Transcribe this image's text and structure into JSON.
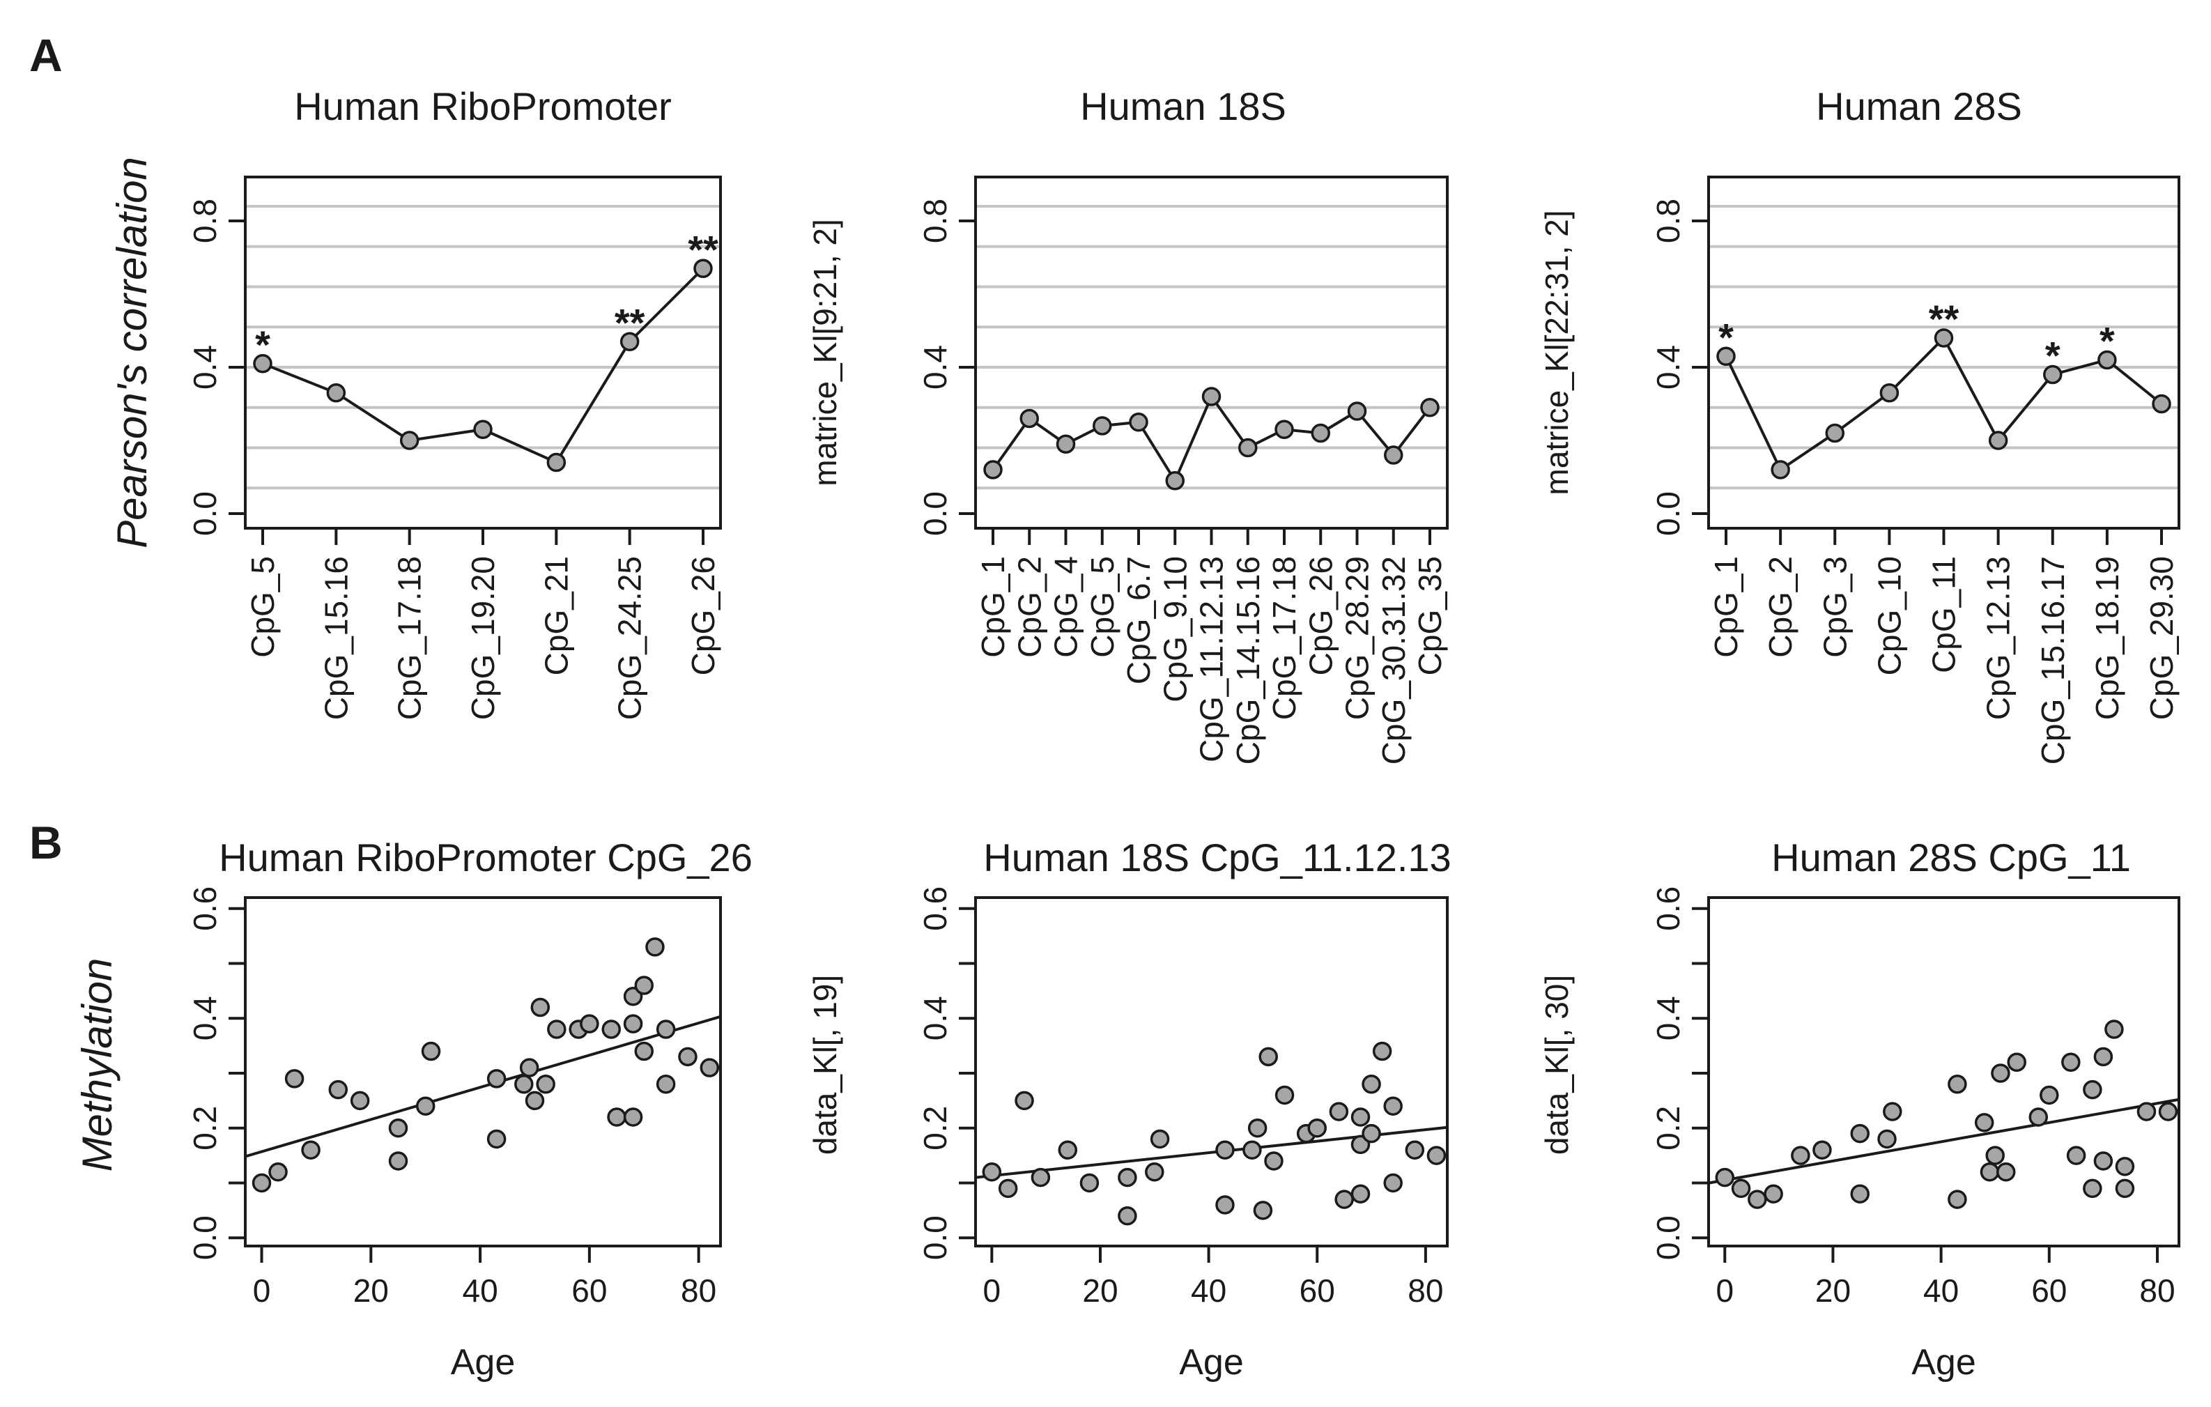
{
  "panel_labels": {
    "a": "A",
    "b": "B"
  },
  "colors": {
    "grid": "#c4c4c4",
    "point_fill": "#a6a6a6",
    "ink": "#1a1a1a"
  },
  "chart_data": [
    {
      "type": "line",
      "title": "Human RiboPromoter",
      "xlabel": "",
      "ylabel": "Pearson's correlation",
      "ylabel_italic": true,
      "categories": [
        "CpG_5",
        "CpG_15.16",
        "CpG_17.18",
        "CpG_19.20",
        "CpG_21",
        "CpG_24.25",
        "CpG_26"
      ],
      "values": [
        0.41,
        0.33,
        0.2,
        0.23,
        0.14,
        0.47,
        0.67
      ],
      "annotations": [
        "*",
        "",
        "",
        "",
        "",
        "**",
        "**"
      ],
      "ylim": [
        -0.04,
        0.92
      ],
      "yticks": [
        "0.0",
        "0.4",
        "0.8"
      ],
      "ytick_values": [
        0.0,
        0.4,
        0.8
      ],
      "grid_y": [
        0.07,
        0.18,
        0.29,
        0.4,
        0.51,
        0.62,
        0.73,
        0.84
      ]
    },
    {
      "type": "line",
      "title": "Human 18S",
      "xlabel": "",
      "ylabel": "matrice_Kl[9:21, 2]",
      "ylabel_italic": false,
      "categories": [
        "CpG_1",
        "CpG_2",
        "CpG_4",
        "CpG_5",
        "CpG_6.7",
        "CpG_9.10",
        "CpG_11.12.13",
        "CpG_14.15.16",
        "CpG_17.18",
        "CpG_26",
        "CpG_28.29",
        "CpG_30.31.32",
        "CpG_35"
      ],
      "values": [
        0.12,
        0.26,
        0.19,
        0.24,
        0.25,
        0.09,
        0.32,
        0.18,
        0.23,
        0.22,
        0.28,
        0.16,
        0.29
      ],
      "annotations": [
        "",
        "",
        "",
        "",
        "",
        "",
        "",
        "",
        "",
        "",
        "",
        "",
        ""
      ],
      "ylim": [
        -0.04,
        0.92
      ],
      "yticks": [
        "0.0",
        "0.4",
        "0.8"
      ],
      "ytick_values": [
        0.0,
        0.4,
        0.8
      ],
      "grid_y": [
        0.07,
        0.18,
        0.29,
        0.4,
        0.51,
        0.62,
        0.73,
        0.84
      ]
    },
    {
      "type": "line",
      "title": "Human 28S",
      "xlabel": "",
      "ylabel": "matrice_Kl[22:31, 2]",
      "ylabel_italic": false,
      "categories": [
        "CpG_1",
        "CpG_2",
        "CpG_3",
        "CpG_10",
        "CpG_11",
        "CpG_12.13",
        "CpG_15.16.17",
        "CpG_18.19",
        "CpG_29.30"
      ],
      "values": [
        0.43,
        0.12,
        0.22,
        0.33,
        0.48,
        0.2,
        0.38,
        0.42,
        0.3
      ],
      "annotations": [
        "*",
        "",
        "",
        "",
        "**",
        "",
        "*",
        "*",
        ""
      ],
      "ylim": [
        -0.04,
        0.92
      ],
      "yticks": [
        "0.0",
        "0.4",
        "0.8"
      ],
      "ytick_values": [
        0.0,
        0.4,
        0.8
      ],
      "grid_y": [
        0.07,
        0.18,
        0.29,
        0.4,
        0.51,
        0.62,
        0.73,
        0.84
      ]
    },
    {
      "type": "scatter",
      "title": "Human RiboPromoter CpG_26",
      "xlabel": "Age",
      "ylabel": "Methylation",
      "ylabel_italic": true,
      "x": [
        0,
        3,
        6,
        9,
        14,
        18,
        25,
        25,
        30,
        31,
        43,
        43,
        48,
        49,
        50,
        51,
        52,
        54,
        58,
        60,
        64,
        65,
        68,
        68,
        68,
        70,
        70,
        72,
        74,
        74,
        78,
        82
      ],
      "y": [
        0.1,
        0.12,
        0.29,
        0.16,
        0.27,
        0.25,
        0.14,
        0.2,
        0.24,
        0.34,
        0.18,
        0.29,
        0.28,
        0.31,
        0.25,
        0.42,
        0.28,
        0.38,
        0.38,
        0.39,
        0.38,
        0.22,
        0.22,
        0.39,
        0.44,
        0.34,
        0.46,
        0.53,
        0.28,
        0.38,
        0.33,
        0.31
      ],
      "fit_line": {
        "intercept": 0.157,
        "slope": 0.00293
      },
      "xlim": [
        -3,
        84
      ],
      "ylim": [
        -0.015,
        0.62
      ],
      "xticks": [
        "0",
        "20",
        "40",
        "60",
        "80"
      ],
      "xtick_values": [
        0,
        20,
        40,
        60,
        80
      ],
      "yticks": [
        "0.0",
        "0.2",
        "0.4",
        "0.6"
      ],
      "ytick_values": [
        0.0,
        0.2,
        0.4,
        0.6
      ]
    },
    {
      "type": "scatter",
      "title": "Human 18S CpG_11.12.13",
      "xlabel": "Age",
      "ylabel": "data_Kl[, 19]",
      "ylabel_italic": false,
      "x": [
        0,
        3,
        6,
        9,
        14,
        18,
        25,
        25,
        30,
        31,
        43,
        43,
        48,
        49,
        50,
        51,
        52,
        54,
        58,
        60,
        64,
        65,
        68,
        68,
        68,
        70,
        70,
        72,
        74,
        74,
        78,
        82
      ],
      "y": [
        0.12,
        0.09,
        0.25,
        0.11,
        0.16,
        0.1,
        0.04,
        0.11,
        0.12,
        0.18,
        0.06,
        0.16,
        0.16,
        0.2,
        0.05,
        0.33,
        0.14,
        0.26,
        0.19,
        0.2,
        0.23,
        0.07,
        0.08,
        0.17,
        0.22,
        0.19,
        0.28,
        0.34,
        0.1,
        0.24,
        0.16,
        0.15
      ],
      "fit_line": {
        "intercept": 0.113,
        "slope": 0.00105
      },
      "xlim": [
        -3,
        84
      ],
      "ylim": [
        -0.015,
        0.62
      ],
      "xticks": [
        "0",
        "20",
        "40",
        "60",
        "80"
      ],
      "xtick_values": [
        0,
        20,
        40,
        60,
        80
      ],
      "yticks": [
        "0.0",
        "0.2",
        "0.4",
        "0.6"
      ],
      "ytick_values": [
        0.0,
        0.2,
        0.4,
        0.6
      ]
    },
    {
      "type": "scatter",
      "title": "Human 28S CpG_11",
      "xlabel": "Age",
      "ylabel": "data_Kl[, 30]",
      "ylabel_italic": false,
      "x": [
        0,
        3,
        6,
        9,
        14,
        18,
        25,
        25,
        30,
        31,
        43,
        43,
        48,
        49,
        50,
        51,
        52,
        54,
        58,
        60,
        64,
        65,
        68,
        68,
        70,
        70,
        72,
        74,
        74,
        78,
        82
      ],
      "y": [
        0.11,
        0.09,
        0.07,
        0.08,
        0.15,
        0.16,
        0.08,
        0.19,
        0.18,
        0.23,
        0.07,
        0.28,
        0.21,
        0.12,
        0.15,
        0.3,
        0.12,
        0.32,
        0.22,
        0.26,
        0.32,
        0.15,
        0.09,
        0.27,
        0.14,
        0.33,
        0.38,
        0.13,
        0.09,
        0.23,
        0.23
      ],
      "fit_line": {
        "intercept": 0.105,
        "slope": 0.00175
      },
      "xlim": [
        -3,
        84
      ],
      "ylim": [
        -0.015,
        0.62
      ],
      "xticks": [
        "0",
        "20",
        "40",
        "60",
        "80"
      ],
      "xtick_values": [
        0,
        20,
        40,
        60,
        80
      ],
      "yticks": [
        "0.0",
        "0.2",
        "0.4",
        "0.6"
      ],
      "ytick_values": [
        0.0,
        0.2,
        0.4,
        0.6
      ]
    }
  ]
}
